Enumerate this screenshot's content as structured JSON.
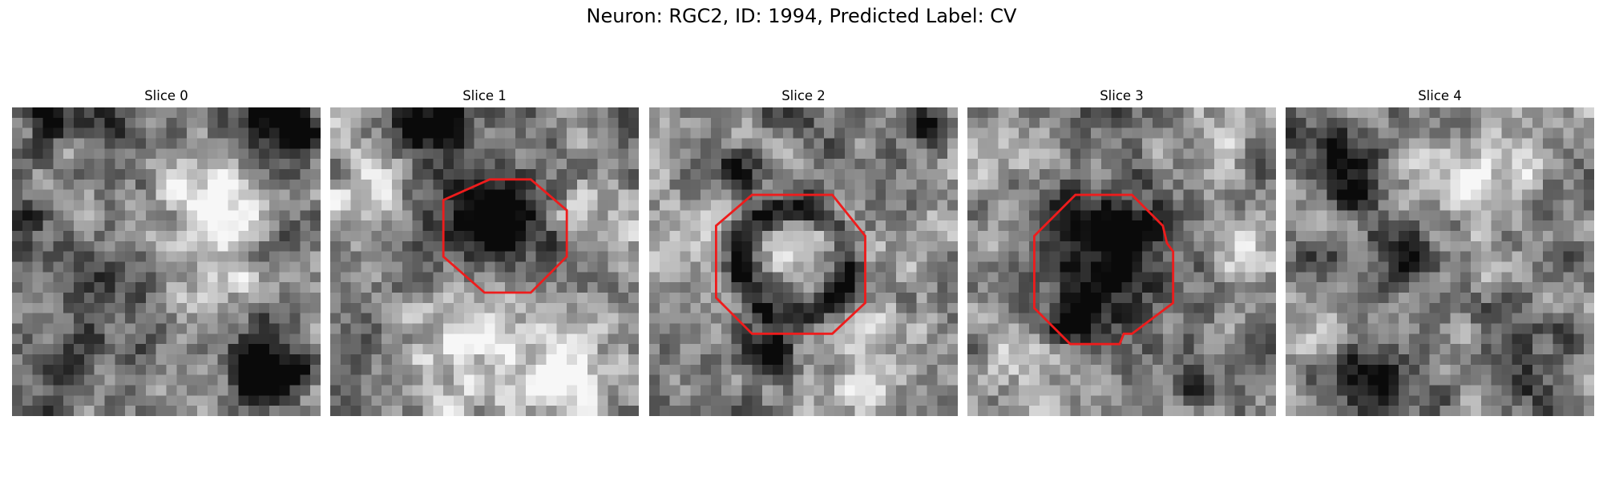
{
  "figure": {
    "title": "Neuron: RGC2, ID: 1994, Predicted Label: CV"
  },
  "panels": [
    {
      "title": "Slice 0",
      "contour": false,
      "seed": 11,
      "blobs": [
        [
          3.5,
          0.5,
          1.6,
          -0.55
        ],
        [
          9.5,
          2,
          2,
          -0.3
        ],
        [
          25,
          1,
          3,
          -0.35
        ],
        [
          27.5,
          2.5,
          1.5,
          -0.6
        ],
        [
          18,
          8,
          2.5,
          0.3
        ],
        [
          20,
          10,
          2.5,
          0.3
        ],
        [
          0,
          11,
          2,
          -0.4
        ],
        [
          6,
          16,
          3,
          -0.3
        ],
        [
          20,
          15,
          3,
          0.2
        ],
        [
          12,
          21,
          2.5,
          -0.2
        ],
        [
          23,
          24,
          2,
          -0.3
        ],
        [
          26,
          25,
          2,
          -0.55
        ],
        [
          24,
          27,
          1.5,
          -0.45
        ],
        [
          5,
          25,
          3,
          -0.25
        ]
      ]
    },
    {
      "title": "Slice 1",
      "contour": true,
      "seed": 23,
      "blobs": [
        [
          11,
          1.5,
          2.2,
          -0.55
        ],
        [
          7,
          2,
          2,
          -0.35
        ],
        [
          14.5,
          12,
          4,
          -0.5
        ],
        [
          16,
          10,
          3,
          -0.2
        ],
        [
          3,
          9,
          3,
          0.3
        ],
        [
          26,
          10,
          3,
          0.25
        ],
        [
          13,
          22,
          5,
          0.35
        ],
        [
          24,
          24,
          3,
          0.25
        ],
        [
          20,
          27,
          3,
          0.2
        ],
        [
          4,
          20,
          3,
          -0.2
        ],
        [
          1,
          1,
          2.5,
          0.25
        ]
      ]
    },
    {
      "title": "Slice 2",
      "contour": true,
      "seed": 37,
      "blobs": [
        [
          9,
          7,
          1.6,
          -0.4
        ],
        [
          13,
          14,
          2,
          0.25
        ],
        [
          27,
          2,
          1.5,
          -0.5
        ],
        [
          2,
          2,
          2,
          0.3
        ],
        [
          11,
          23,
          2,
          -0.2
        ],
        [
          12,
          23.5,
          1.2,
          -0.6
        ],
        [
          3,
          12,
          2.5,
          0.2
        ],
        [
          25,
          15,
          3,
          0.15
        ],
        [
          15,
          1,
          2.5,
          -0.2
        ],
        [
          22,
          25,
          3,
          0.2
        ]
      ]
    },
    {
      "title": "Slice 3",
      "contour": true,
      "seed": 53,
      "blobs": [
        [
          13.5,
          13,
          4.5,
          -0.45
        ],
        [
          14,
          12,
          2,
          -0.2
        ],
        [
          10,
          21,
          1.3,
          -0.65
        ],
        [
          12,
          20,
          2,
          -0.3
        ],
        [
          16,
          13,
          2,
          -0.2
        ],
        [
          3,
          4,
          3,
          0.3
        ],
        [
          26,
          3,
          3,
          0.25
        ],
        [
          27,
          14,
          2.5,
          0.2
        ],
        [
          28,
          5,
          1.5,
          -0.45
        ],
        [
          21,
          26,
          3,
          -0.15
        ],
        [
          5,
          24,
          3,
          0.2
        ]
      ]
    },
    {
      "title": "Slice 4",
      "contour": false,
      "seed": 71,
      "blobs": [
        [
          6,
          6,
          2.5,
          -0.45
        ],
        [
          5,
          15,
          2,
          -0.35
        ],
        [
          12,
          15,
          2.5,
          -0.3
        ],
        [
          9,
          27,
          2.5,
          -0.5
        ],
        [
          22,
          22,
          2,
          -0.3
        ],
        [
          22,
          6,
          2.5,
          0.35
        ],
        [
          16,
          8,
          2.5,
          0.3
        ],
        [
          25,
          27,
          2,
          -0.25
        ],
        [
          2,
          20,
          2,
          0.25
        ]
      ]
    }
  ],
  "colors": {
    "contour": "#ee1c1c",
    "background": "#ffffff"
  },
  "contours": {
    "1": [
      [
        11,
        9
      ],
      [
        15.5,
        7
      ],
      [
        19.5,
        7
      ],
      [
        23,
        10
      ],
      [
        23,
        14.5
      ],
      [
        19.5,
        18
      ],
      [
        15,
        18
      ],
      [
        11,
        14.5
      ]
    ],
    "2": [
      [
        6.5,
        11.5
      ],
      [
        10,
        8.5
      ],
      [
        17.8,
        8.5
      ],
      [
        21,
        12.5
      ],
      [
        21,
        19
      ],
      [
        17.8,
        22
      ],
      [
        10,
        22
      ],
      [
        6.5,
        18.5
      ]
    ],
    "3": [
      [
        6.5,
        12.5
      ],
      [
        10.5,
        8.5
      ],
      [
        16,
        8.5
      ],
      [
        19,
        11.5
      ],
      [
        19.4,
        13.2
      ],
      [
        20,
        14
      ],
      [
        20,
        19
      ],
      [
        16,
        22
      ],
      [
        15.2,
        22
      ],
      [
        14.8,
        23
      ],
      [
        10,
        23
      ],
      [
        6.5,
        19.5
      ]
    ]
  }
}
